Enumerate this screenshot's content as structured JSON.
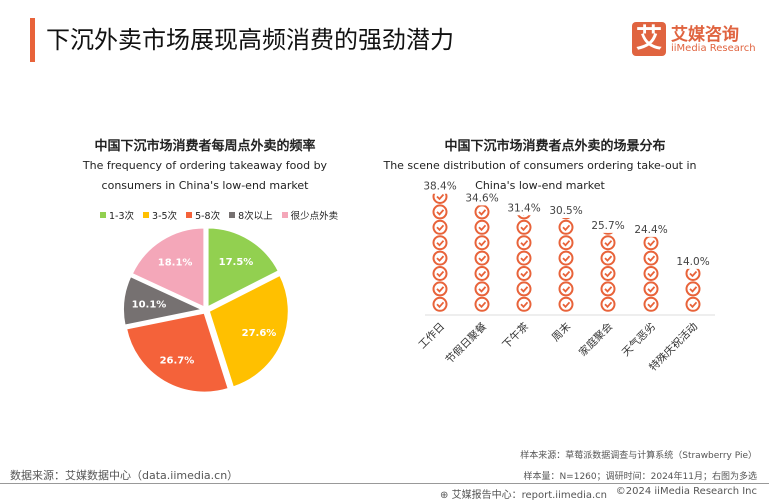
{
  "header": {
    "title": "下沉外卖市场展现高频消费的强劲潜力",
    "logo_mark": "艾",
    "logo_cn": "艾媒咨询",
    "logo_en": "iiMedia Research"
  },
  "chart_data": [
    {
      "type": "pie",
      "title": "中国下沉市场消费者每周点外卖的频率",
      "subtitle": "The frequency of ordering takeaway food by consumers in China's low-end market",
      "legend_position": "top",
      "categories": [
        "1-3次",
        "3-5次",
        "5-8次",
        "8次以上",
        "很少点外卖"
      ],
      "values": [
        17.5,
        27.6,
        26.7,
        10.1,
        18.1
      ],
      "labels": [
        "17.5%",
        "27.6%",
        "26.7%",
        "10.1%",
        "18.1%"
      ],
      "colors": [
        "#92d050",
        "#ffc000",
        "#f4623a",
        "#767171",
        "#f4a7b9"
      ]
    },
    {
      "type": "bar",
      "style": "pictograph",
      "icon": "check-circle-icon",
      "title": "中国下沉市场消费者点外卖的场景分布",
      "subtitle": "The scene distribution of consumers ordering take-out in China's low-end market",
      "categories": [
        "工作日",
        "节假日聚餐",
        "下午茶",
        "周末",
        "家庭聚会",
        "天气恶劣",
        "特殊庆祝活动"
      ],
      "values": [
        38.4,
        34.6,
        31.4,
        30.5,
        25.7,
        24.4,
        14.0
      ],
      "labels": [
        "38.4%",
        "34.6%",
        "31.4%",
        "30.5%",
        "25.7%",
        "24.4%",
        "14.0%"
      ],
      "color": "#e8633a"
    }
  ],
  "footer": {
    "source": "数据来源：艾媒数据中心（data.iimedia.cn）",
    "sample_source": "样本来源：草莓派数据调查与计算系统（Strawberry Pie）",
    "sample_info": "样本量：N=1260；调研时间：2024年11月；右图为多选",
    "report": "艾媒报告中心：report.iimedia.cn",
    "copyright": "©2024  iiMedia Research  Inc"
  }
}
